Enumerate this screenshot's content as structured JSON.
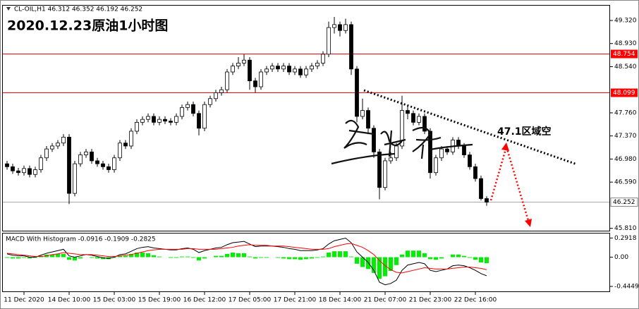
{
  "chart_data": [
    {
      "type": "candlestick",
      "header": "CL-OIL,H1  46.312 46.352 46.192 46.252",
      "title": "2020.12.23原油1小时图",
      "annotation": "47.1区域空",
      "categories": [
        null,
        null,
        null,
        "11 Dec 2020",
        null,
        null,
        null,
        null,
        null,
        null,
        null,
        "14 Dec 10:00",
        null,
        null,
        null,
        null,
        null,
        null,
        null,
        "15 Dec 03:00",
        null,
        null,
        null,
        null,
        null,
        null,
        null,
        "15 Dec 19:00",
        null,
        null,
        null,
        null,
        null,
        null,
        null,
        "16 Dec 12:00",
        null,
        null,
        null,
        null,
        null,
        null,
        null,
        "17 Dec 05:00",
        null,
        null,
        null,
        null,
        null,
        null,
        null,
        "17 Dec 21:00",
        null,
        null,
        null,
        null,
        null,
        null,
        null,
        "18 Dec 14:00",
        null,
        null,
        null,
        null,
        null,
        null,
        null,
        "21 Dec 07:00",
        null,
        null,
        null,
        null,
        null,
        null,
        null,
        "21 Dec 23:00",
        null,
        null,
        null,
        null,
        null,
        null,
        null,
        "22 Dec 16:00",
        null,
        null
      ],
      "open": [
        46.9,
        46.85,
        46.78,
        46.75,
        46.82,
        46.72,
        46.8,
        47.0,
        47.15,
        47.2,
        47.25,
        47.35,
        46.4,
        46.9,
        47.05,
        47.1,
        46.95,
        46.9,
        46.85,
        46.8,
        47.0,
        47.25,
        47.2,
        47.45,
        47.6,
        47.65,
        47.7,
        47.6,
        47.65,
        47.62,
        47.6,
        47.7,
        47.85,
        47.9,
        47.75,
        47.5,
        47.9,
        48.0,
        48.1,
        48.15,
        48.45,
        48.55,
        48.6,
        48.65,
        48.3,
        48.2,
        48.45,
        48.5,
        48.55,
        48.5,
        48.55,
        48.45,
        48.5,
        48.4,
        48.5,
        48.55,
        48.6,
        48.75,
        49.2,
        49.25,
        49.15,
        49.25,
        48.5,
        47.7,
        47.8,
        47.5,
        47.1,
        46.5,
        46.95,
        47.0,
        47.2,
        47.8,
        47.75,
        47.6,
        47.7,
        47.45,
        46.75,
        47.0,
        47.15,
        47.1,
        47.3,
        47.2,
        47.05,
        46.85,
        46.65,
        46.312
      ],
      "high": [
        46.95,
        46.9,
        46.83,
        46.87,
        46.87,
        46.85,
        47.05,
        47.2,
        47.25,
        47.3,
        47.4,
        47.4,
        46.95,
        47.1,
        47.15,
        47.15,
        47.0,
        46.95,
        46.9,
        47.05,
        47.3,
        47.3,
        47.5,
        47.65,
        47.7,
        47.75,
        47.75,
        47.7,
        47.7,
        47.67,
        47.75,
        47.9,
        47.95,
        47.95,
        47.8,
        47.95,
        48.05,
        48.15,
        48.2,
        48.5,
        48.6,
        48.7,
        48.75,
        48.7,
        48.35,
        48.5,
        48.55,
        48.6,
        48.6,
        48.6,
        48.6,
        48.55,
        48.55,
        48.55,
        48.6,
        48.65,
        48.8,
        49.3,
        49.38,
        49.3,
        49.35,
        49.3,
        48.55,
        48.0,
        47.85,
        47.55,
        47.15,
        47.0,
        47.1,
        47.25,
        48.05,
        47.9,
        47.8,
        47.75,
        47.75,
        47.5,
        47.05,
        47.2,
        47.2,
        47.35,
        47.35,
        47.25,
        47.1,
        46.9,
        46.7,
        46.352
      ],
      "low": [
        46.8,
        46.73,
        46.7,
        46.7,
        46.67,
        46.67,
        46.75,
        46.95,
        47.1,
        47.15,
        47.2,
        46.22,
        46.35,
        46.85,
        47.0,
        46.9,
        46.85,
        46.8,
        46.75,
        46.75,
        46.95,
        47.15,
        47.15,
        47.4,
        47.55,
        47.6,
        47.55,
        47.55,
        47.57,
        47.55,
        47.55,
        47.65,
        47.8,
        47.7,
        47.38,
        47.45,
        47.85,
        47.95,
        48.05,
        48.1,
        48.4,
        48.5,
        48.55,
        48.15,
        48.1,
        48.15,
        48.4,
        48.45,
        48.45,
        48.45,
        48.4,
        48.4,
        48.35,
        48.35,
        48.45,
        48.5,
        48.55,
        48.7,
        49.1,
        49.05,
        49.1,
        48.4,
        47.6,
        47.65,
        47.4,
        47.0,
        46.3,
        46.45,
        46.9,
        46.95,
        47.15,
        47.65,
        47.55,
        47.55,
        47.4,
        46.65,
        46.7,
        46.95,
        47.05,
        47.05,
        47.15,
        47.0,
        46.8,
        46.6,
        46.28,
        46.192
      ],
      "close": [
        46.85,
        46.78,
        46.75,
        46.82,
        46.72,
        46.8,
        47.0,
        47.15,
        47.2,
        47.25,
        47.35,
        46.4,
        46.9,
        47.05,
        47.1,
        46.95,
        46.9,
        46.85,
        46.8,
        47.0,
        47.25,
        47.2,
        47.45,
        47.6,
        47.65,
        47.7,
        47.6,
        47.65,
        47.62,
        47.6,
        47.7,
        47.85,
        47.9,
        47.75,
        47.5,
        47.9,
        48.0,
        48.1,
        48.15,
        48.45,
        48.55,
        48.6,
        48.65,
        48.3,
        48.2,
        48.45,
        48.5,
        48.55,
        48.5,
        48.55,
        48.45,
        48.5,
        48.4,
        48.5,
        48.55,
        48.6,
        48.75,
        49.2,
        49.25,
        49.15,
        49.25,
        48.5,
        47.7,
        47.8,
        47.5,
        47.1,
        46.5,
        46.95,
        47.0,
        47.2,
        47.8,
        47.75,
        47.6,
        47.7,
        47.45,
        46.75,
        47.0,
        47.15,
        47.1,
        47.3,
        47.2,
        47.05,
        46.85,
        46.65,
        46.312,
        46.252
      ],
      "ylim": [
        45.77,
        49.57
      ],
      "yticks": [
        {
          "value": 49.32,
          "label": "49.320"
        },
        {
          "value": 48.93,
          "label": "48.930"
        },
        {
          "value": 48.54,
          "label": "48.540"
        },
        {
          "value": 47.76,
          "label": "47.760"
        },
        {
          "value": 47.37,
          "label": "47.370"
        },
        {
          "value": 46.98,
          "label": "46.980"
        },
        {
          "value": 46.59,
          "label": "46.590"
        },
        {
          "value": 45.81,
          "label": "45.810"
        }
      ],
      "hlines": [
        {
          "value": 48.754,
          "color": "#ff0000"
        },
        {
          "value": 48.099,
          "color": "#ff0000"
        }
      ],
      "current_price": 46.252
    },
    {
      "type": "macd",
      "title": "MACD With Histogram -0.0916 -0.1909 -0.2825",
      "series": [
        {
          "kind": "bar",
          "color": "#00ee00",
          "values": [
            -0.01,
            -0.02,
            -0.02,
            -0.01,
            -0.02,
            -0.01,
            0.02,
            0.04,
            0.04,
            0.05,
            0.05,
            -0.04,
            -0.05,
            -0.02,
            0.0,
            -0.01,
            -0.02,
            -0.03,
            -0.03,
            -0.01,
            0.02,
            0.02,
            0.05,
            0.07,
            0.07,
            0.06,
            0.03,
            0.01,
            0.0,
            -0.01,
            -0.01,
            0.01,
            0.01,
            -0.01,
            -0.05,
            -0.02,
            0.0,
            0.02,
            0.02,
            0.05,
            0.07,
            0.06,
            0.06,
            0.01,
            -0.02,
            -0.01,
            -0.01,
            0.0,
            -0.01,
            -0.02,
            -0.03,
            -0.03,
            -0.04,
            -0.03,
            -0.02,
            -0.01,
            0.01,
            0.07,
            0.09,
            0.09,
            0.09,
            0.01,
            -0.1,
            -0.15,
            -0.18,
            -0.24,
            -0.33,
            -0.29,
            -0.21,
            -0.12,
            0.04,
            0.1,
            0.1,
            0.1,
            0.06,
            -0.03,
            -0.04,
            -0.02,
            0.0,
            0.04,
            0.04,
            0.02,
            -0.01,
            -0.04,
            -0.08,
            -0.0916
          ]
        },
        {
          "kind": "line",
          "color": "#000000",
          "values": [
            0.05,
            0.03,
            0.02,
            0.02,
            0.0,
            0.0,
            0.03,
            0.06,
            0.08,
            0.1,
            0.12,
            0.02,
            0.0,
            0.02,
            0.04,
            0.03,
            0.01,
            -0.01,
            -0.02,
            0.0,
            0.04,
            0.05,
            0.09,
            0.13,
            0.15,
            0.16,
            0.14,
            0.13,
            0.12,
            0.11,
            0.11,
            0.13,
            0.14,
            0.12,
            0.07,
            0.1,
            0.12,
            0.14,
            0.15,
            0.19,
            0.22,
            0.23,
            0.24,
            0.2,
            0.16,
            0.17,
            0.17,
            0.17,
            0.16,
            0.15,
            0.13,
            0.12,
            0.1,
            0.1,
            0.1,
            0.11,
            0.13,
            0.2,
            0.25,
            0.27,
            0.29,
            0.22,
            0.08,
            0.0,
            -0.08,
            -0.2,
            -0.38,
            -0.42,
            -0.4,
            -0.35,
            -0.2,
            -0.12,
            -0.1,
            -0.08,
            -0.1,
            -0.2,
            -0.22,
            -0.2,
            -0.18,
            -0.13,
            -0.12,
            -0.13,
            -0.16,
            -0.2,
            -0.25,
            -0.2825
          ]
        },
        {
          "kind": "line",
          "color": "#ff0000",
          "values": [
            0.06,
            0.05,
            0.04,
            0.03,
            0.02,
            0.01,
            0.01,
            0.02,
            0.04,
            0.05,
            0.07,
            0.06,
            0.05,
            0.04,
            0.04,
            0.04,
            0.03,
            0.02,
            0.01,
            0.01,
            0.02,
            0.03,
            0.04,
            0.06,
            0.08,
            0.1,
            0.11,
            0.12,
            0.12,
            0.12,
            0.12,
            0.12,
            0.13,
            0.13,
            0.12,
            0.12,
            0.12,
            0.12,
            0.13,
            0.14,
            0.15,
            0.17,
            0.18,
            0.19,
            0.18,
            0.18,
            0.18,
            0.17,
            0.17,
            0.17,
            0.16,
            0.15,
            0.14,
            0.13,
            0.12,
            0.12,
            0.12,
            0.13,
            0.16,
            0.18,
            0.2,
            0.21,
            0.18,
            0.15,
            0.1,
            0.04,
            -0.05,
            -0.13,
            -0.19,
            -0.23,
            -0.24,
            -0.22,
            -0.2,
            -0.18,
            -0.16,
            -0.17,
            -0.18,
            -0.18,
            -0.18,
            -0.17,
            -0.16,
            -0.15,
            -0.15,
            -0.16,
            -0.17,
            -0.1909
          ]
        }
      ],
      "ylim": [
        -0.52,
        0.36
      ],
      "yticks": [
        0.2918,
        {
          "value": 0,
          "label": "0.00"
        },
        -0.4449
      ]
    }
  ]
}
